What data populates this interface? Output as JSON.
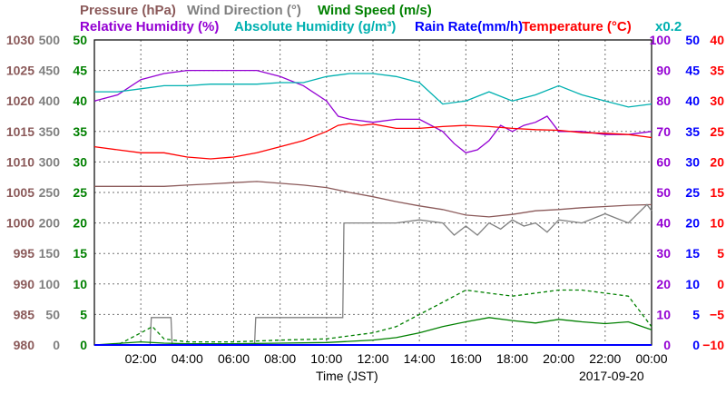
{
  "chart_data": {
    "type": "line",
    "date": "2017-09-20",
    "xlabel": "Time (JST)",
    "x_ticks": [
      "02:00",
      "04:00",
      "06:00",
      "08:00",
      "10:00",
      "12:00",
      "14:00",
      "16:00",
      "18:00",
      "20:00",
      "22:00",
      "00:00"
    ],
    "x_range_hours": [
      0,
      24
    ],
    "grid": true,
    "axes": [
      {
        "id": "pressure",
        "label": "Pressure (hPa)",
        "color": "#8b5a5a",
        "side": "left",
        "range": [
          980,
          1030
        ],
        "ticks": [
          "980",
          "985",
          "990",
          "995",
          "1000",
          "1005",
          "1010",
          "1015",
          "1020",
          "1025",
          "1030"
        ]
      },
      {
        "id": "wind_dir",
        "label": "Wind Direction (°)",
        "color": "#808080",
        "side": "left",
        "range": [
          0,
          500
        ],
        "ticks": [
          "0",
          "50",
          "100",
          "150",
          "200",
          "250",
          "300",
          "350",
          "400",
          "450",
          "500"
        ]
      },
      {
        "id": "wind_speed",
        "label": "Wind Speed (m/s)",
        "color": "#008000",
        "side": "left",
        "range": [
          0,
          50
        ],
        "ticks": [
          "0",
          "5",
          "10",
          "15",
          "20",
          "25",
          "30",
          "35",
          "40",
          "45",
          "50"
        ]
      },
      {
        "id": "rel_hum",
        "label": "Relative Humidity (%)",
        "color": "#9400d3",
        "side": "right",
        "range": [
          0,
          100
        ],
        "ticks": [
          "0",
          "10",
          "20",
          "30",
          "40",
          "50",
          "60",
          "70",
          "80",
          "90",
          "100"
        ]
      },
      {
        "id": "rain",
        "label": "Rain Rate(mm/h)",
        "color": "#0000ff",
        "side": "right",
        "range": [
          0,
          50
        ],
        "ticks": [
          "0",
          "5",
          "10",
          "15",
          "20",
          "25",
          "30",
          "35",
          "40",
          "45",
          "50"
        ]
      },
      {
        "id": "temp",
        "label": "Temperature (°C)",
        "color": "#ff0000",
        "side": "right",
        "range": [
          -10,
          40
        ],
        "ticks": [
          "−10",
          "−5",
          "0",
          "5",
          "10",
          "15",
          "20",
          "25",
          "30",
          "35",
          "40"
        ]
      }
    ],
    "abs_hum": {
      "label": "Absolute Humidity (g/m³)",
      "scale_note": "x0.2",
      "color": "#00b0b0"
    },
    "series": [
      {
        "name": "Pressure (hPa)",
        "axis": "pressure",
        "color": "#8b5a5a",
        "x": [
          0,
          1,
          2,
          3,
          4,
          5,
          6,
          7,
          8,
          9,
          10,
          11,
          12,
          13,
          14,
          15,
          16,
          17,
          18,
          19,
          20,
          21,
          22,
          23,
          24
        ],
        "y": [
          1006,
          1006,
          1006,
          1006,
          1006.2,
          1006.4,
          1006.6,
          1006.8,
          1006.5,
          1006.2,
          1005.8,
          1005,
          1004.3,
          1003.5,
          1002.8,
          1002.2,
          1001.3,
          1001,
          1001.4,
          1002,
          1002.2,
          1002.5,
          1002.7,
          1002.9,
          1003
        ]
      },
      {
        "name": "Wind Direction (°)",
        "axis": "wind_dir",
        "color": "#808080",
        "x": [
          0,
          2.4,
          2.45,
          3.3,
          3.35,
          6.9,
          6.95,
          10.7,
          10.75,
          13,
          14,
          15,
          15.5,
          16,
          16.5,
          17,
          17.5,
          18,
          18.5,
          19,
          19.5,
          20,
          21,
          22,
          23,
          23.8,
          24
        ],
        "y": [
          0,
          0,
          45,
          45,
          0,
          0,
          45,
          45,
          200,
          200,
          205,
          200,
          180,
          195,
          180,
          200,
          190,
          205,
          195,
          200,
          185,
          205,
          200,
          215,
          200,
          230,
          220
        ]
      },
      {
        "name": "Wind Speed (m/s)",
        "axis": "wind_speed",
        "color": "#008000",
        "x": [
          0,
          2,
          3,
          4,
          6,
          8,
          10,
          11,
          12,
          13,
          14,
          15,
          16,
          17,
          18,
          19,
          20,
          21,
          22,
          23,
          24
        ],
        "y": [
          0,
          0.5,
          0.3,
          0.2,
          0.2,
          0.3,
          0.4,
          0.6,
          0.8,
          1.2,
          2,
          3,
          3.8,
          4.5,
          4,
          3.6,
          4.2,
          3.8,
          3.5,
          3.8,
          2.5
        ]
      },
      {
        "name": "Wind Gust (m/s)",
        "axis": "wind_speed",
        "color": "#008000",
        "dashed": true,
        "x": [
          0,
          1,
          2,
          2.5,
          3,
          4,
          6,
          8,
          10,
          11,
          12,
          13,
          14,
          15,
          16,
          17,
          18,
          19,
          20,
          21,
          22,
          23,
          24
        ],
        "y": [
          0,
          0,
          2,
          3,
          1,
          0.5,
          0.5,
          0.8,
          1,
          1.5,
          2,
          3,
          5,
          7,
          9,
          8.5,
          8,
          8.5,
          9,
          9,
          8.5,
          8,
          3
        ]
      },
      {
        "name": "Relative Humidity (%)",
        "axis": "rel_hum",
        "color": "#9400d3",
        "x": [
          0,
          1,
          2,
          3,
          4,
          5,
          6,
          7,
          8,
          9,
          10,
          10.5,
          11,
          12,
          13,
          14,
          15,
          15.5,
          16,
          16.5,
          17,
          17.5,
          18,
          18.5,
          19,
          19.5,
          20,
          21,
          22,
          23,
          24
        ],
        "y": [
          80,
          82,
          87,
          89,
          90,
          90,
          90,
          90,
          88,
          85,
          80,
          75,
          74,
          73,
          74,
          74,
          70,
          66,
          63,
          64,
          67,
          72,
          70,
          72,
          73,
          75,
          70,
          70,
          69,
          69,
          70
        ]
      },
      {
        "name": "Absolute Humidity (g/m³)",
        "axis": "rel_hum",
        "color": "#00b0b0",
        "x": [
          0,
          1,
          2,
          3,
          4,
          5,
          6,
          7,
          8,
          9,
          10,
          11,
          12,
          13,
          14,
          15,
          16,
          17,
          18,
          19,
          20,
          21,
          22,
          23,
          24
        ],
        "y": [
          83,
          83,
          84,
          85,
          85,
          85.5,
          85.5,
          85.5,
          86,
          86,
          88,
          89,
          89,
          88,
          86,
          79,
          80,
          83,
          80,
          82,
          85,
          82,
          80,
          78,
          79
        ]
      },
      {
        "name": "Temperature (°C)",
        "axis": "temp",
        "color": "#ff0000",
        "x": [
          0,
          1,
          2,
          3,
          4,
          5,
          6,
          7,
          8,
          9,
          10,
          10.5,
          11,
          11.5,
          12,
          13,
          14,
          15,
          16,
          17,
          18,
          19,
          20,
          21,
          22,
          23,
          24
        ],
        "y": [
          22.5,
          22,
          21.5,
          21.5,
          20.8,
          20.5,
          20.8,
          21.5,
          22.5,
          23.5,
          25,
          26,
          26.3,
          26,
          26.2,
          25.5,
          25.5,
          25.8,
          26,
          25.8,
          25.5,
          25.3,
          25.2,
          24.8,
          24.7,
          24.5,
          24
        ]
      },
      {
        "name": "Rain Rate(mm/h)",
        "axis": "rain",
        "color": "#0000ff",
        "x": [
          0,
          24
        ],
        "y": [
          0,
          0
        ]
      }
    ]
  }
}
